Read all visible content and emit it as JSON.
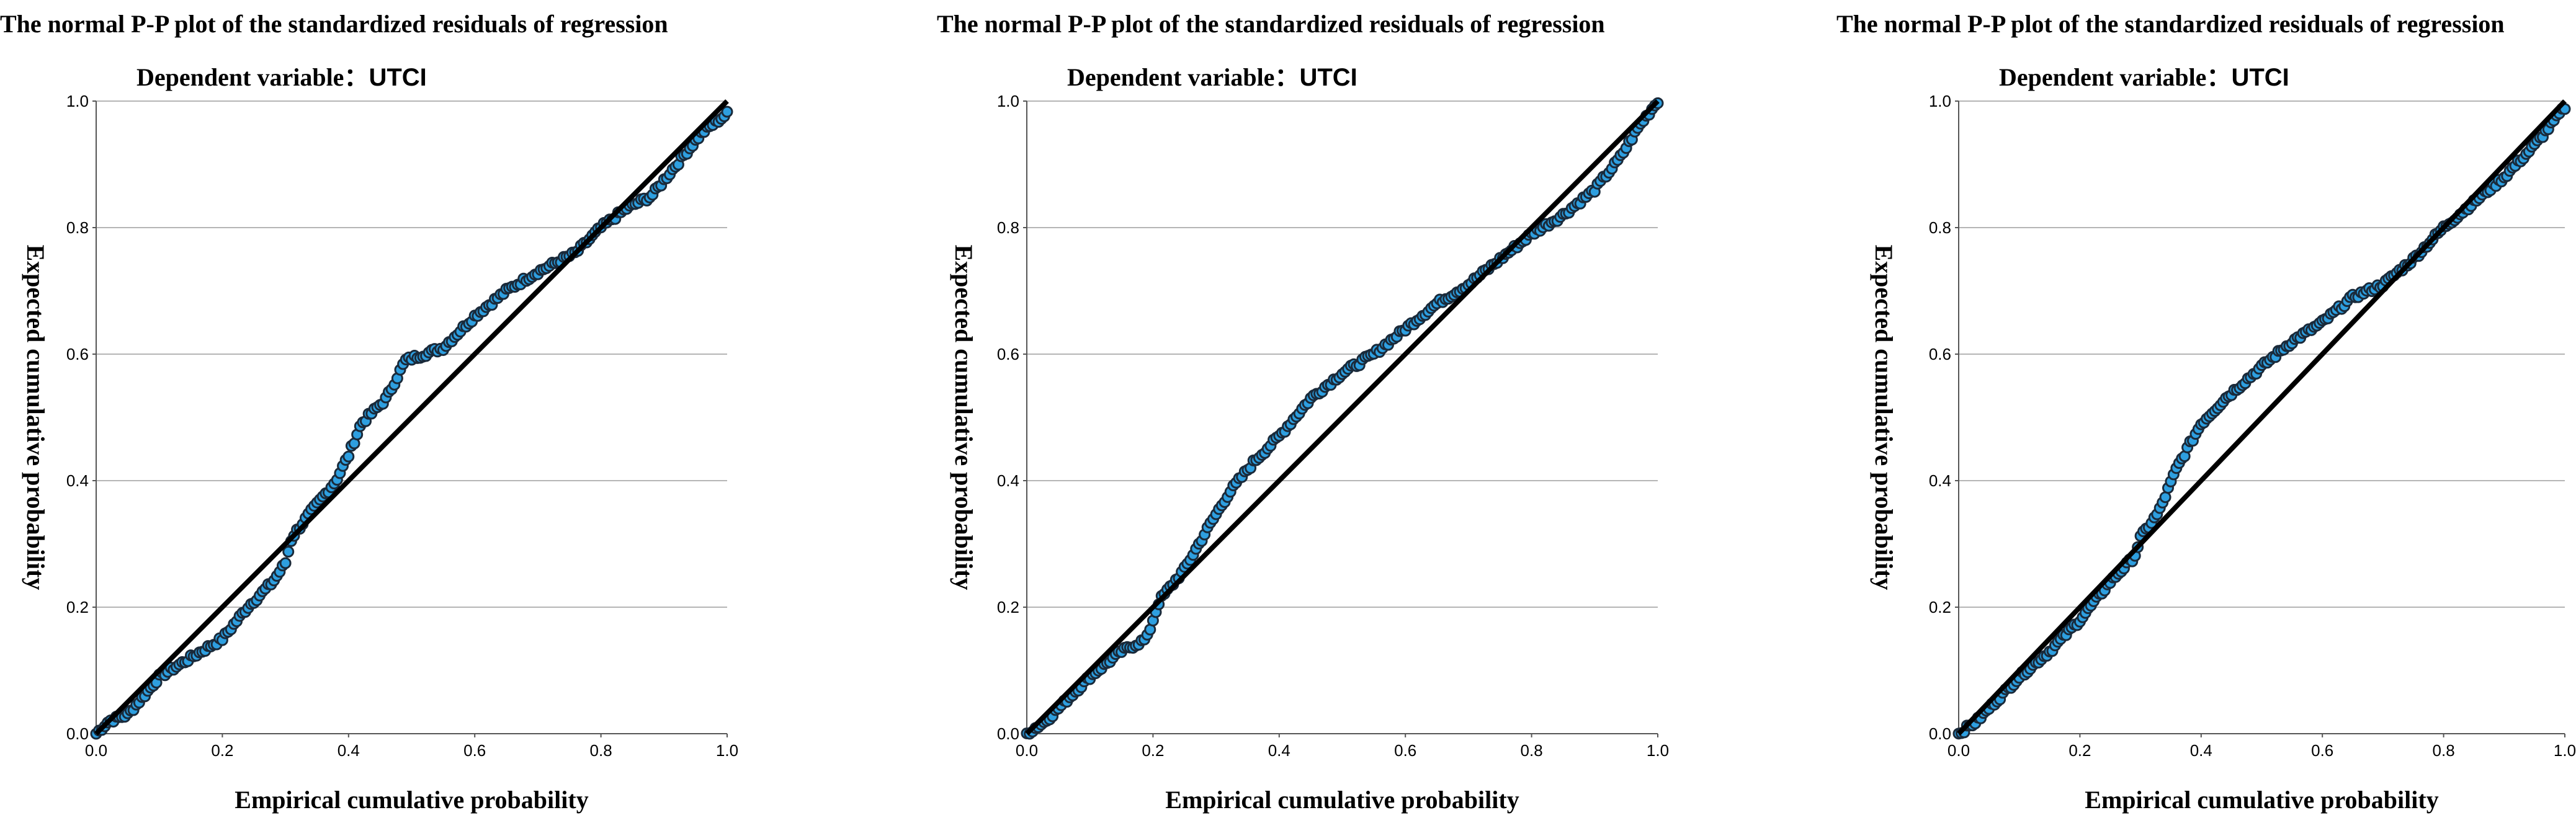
{
  "chart_data": [
    {
      "type": "scatter",
      "title": "The normal P-P plot of the standardized residuals of regression",
      "subtitle_label": "Dependent variable：",
      "subtitle_value": "UTCI",
      "xlabel": "Empirical cumulative probability",
      "ylabel": "Expected cumulative probability",
      "xlim": [
        0,
        1
      ],
      "ylim": [
        0,
        1
      ],
      "xticks": [
        "0.0",
        "0.2",
        "0.4",
        "0.6",
        "0.8",
        "1.0"
      ],
      "yticks": [
        "0.0",
        "0.2",
        "0.4",
        "0.6",
        "0.8",
        "1.0"
      ],
      "gridlines": "horizontal",
      "reference_line": [
        [
          0,
          0
        ],
        [
          1,
          1
        ]
      ],
      "point_color": "#2e9fe0",
      "point_edge_color": "#1a2a3a",
      "curve": [
        [
          0,
          0
        ],
        [
          0.02,
          0.02
        ],
        [
          0.05,
          0.03
        ],
        [
          0.08,
          0.065
        ],
        [
          0.1,
          0.09
        ],
        [
          0.15,
          0.12
        ],
        [
          0.2,
          0.15
        ],
        [
          0.24,
          0.2
        ],
        [
          0.28,
          0.24
        ],
        [
          0.3,
          0.27
        ],
        [
          0.31,
          0.31
        ],
        [
          0.34,
          0.35
        ],
        [
          0.38,
          0.4
        ],
        [
          0.4,
          0.44
        ],
        [
          0.42,
          0.49
        ],
        [
          0.46,
          0.53
        ],
        [
          0.49,
          0.59
        ],
        [
          0.55,
          0.61
        ],
        [
          0.6,
          0.66
        ],
        [
          0.65,
          0.7
        ],
        [
          0.7,
          0.73
        ],
        [
          0.76,
          0.76
        ],
        [
          0.8,
          0.8
        ],
        [
          0.84,
          0.83
        ],
        [
          0.88,
          0.85
        ],
        [
          0.92,
          0.9
        ],
        [
          0.96,
          0.95
        ],
        [
          1.0,
          0.98
        ]
      ],
      "n_points": 220
    },
    {
      "type": "scatter",
      "title": "The normal P-P plot of the standardized residuals of regression",
      "subtitle_label": "Dependent variable：",
      "subtitle_value": "UTCI",
      "xlabel": "Empirical cumulative probability",
      "ylabel": "Expected cumulative probability",
      "xlim": [
        0,
        1
      ],
      "ylim": [
        0,
        1
      ],
      "xticks": [
        "0.0",
        "0.2",
        "0.4",
        "0.6",
        "0.8",
        "1.0"
      ],
      "yticks": [
        "0.0",
        "0.2",
        "0.4",
        "0.6",
        "0.8",
        "1.0"
      ],
      "gridlines": "horizontal",
      "reference_line": [
        [
          0,
          0
        ],
        [
          1,
          1
        ]
      ],
      "point_color": "#2e9fe0",
      "point_edge_color": "#1a2a3a",
      "curve": [
        [
          0,
          0
        ],
        [
          0.03,
          0.02
        ],
        [
          0.06,
          0.05
        ],
        [
          0.1,
          0.09
        ],
        [
          0.15,
          0.13
        ],
        [
          0.19,
          0.15
        ],
        [
          0.2,
          0.18
        ],
        [
          0.21,
          0.21
        ],
        [
          0.25,
          0.26
        ],
        [
          0.29,
          0.33
        ],
        [
          0.32,
          0.38
        ],
        [
          0.36,
          0.43
        ],
        [
          0.4,
          0.47
        ],
        [
          0.45,
          0.53
        ],
        [
          0.5,
          0.57
        ],
        [
          0.55,
          0.6
        ],
        [
          0.6,
          0.64
        ],
        [
          0.65,
          0.68
        ],
        [
          0.7,
          0.71
        ],
        [
          0.75,
          0.75
        ],
        [
          0.8,
          0.79
        ],
        [
          0.85,
          0.82
        ],
        [
          0.9,
          0.86
        ],
        [
          0.94,
          0.91
        ],
        [
          0.97,
          0.96
        ],
        [
          1.0,
          1.0
        ]
      ],
      "n_points": 220
    },
    {
      "type": "scatter",
      "title": "The normal P-P plot of the standardized residuals of regression",
      "subtitle_label": "Dependent variable：",
      "subtitle_value": "UTCI",
      "xlabel": "Empirical cumulative probability",
      "ylabel": "Expected cumulative probability",
      "xlim": [
        0,
        1
      ],
      "ylim": [
        0,
        1
      ],
      "xticks": [
        "0.0",
        "0.2",
        "0.4",
        "0.6",
        "0.8",
        "1.0"
      ],
      "yticks": [
        "0.0",
        "0.2",
        "0.4",
        "0.6",
        "0.8",
        "1.0"
      ],
      "gridlines": "horizontal",
      "reference_line": [
        [
          0,
          0
        ],
        [
          1,
          1
        ]
      ],
      "point_color": "#2e9fe0",
      "point_edge_color": "#1a2a3a",
      "curve": [
        [
          0,
          0
        ],
        [
          0.03,
          0.02
        ],
        [
          0.06,
          0.05
        ],
        [
          0.1,
          0.09
        ],
        [
          0.15,
          0.13
        ],
        [
          0.2,
          0.18
        ],
        [
          0.25,
          0.24
        ],
        [
          0.29,
          0.28
        ],
        [
          0.3,
          0.31
        ],
        [
          0.33,
          0.35
        ],
        [
          0.36,
          0.42
        ],
        [
          0.4,
          0.49
        ],
        [
          0.44,
          0.53
        ],
        [
          0.5,
          0.58
        ],
        [
          0.55,
          0.62
        ],
        [
          0.6,
          0.65
        ],
        [
          0.65,
          0.69
        ],
        [
          0.7,
          0.71
        ],
        [
          0.75,
          0.75
        ],
        [
          0.8,
          0.8
        ],
        [
          0.85,
          0.84
        ],
        [
          0.9,
          0.88
        ],
        [
          0.95,
          0.93
        ],
        [
          1.0,
          0.99
        ]
      ],
      "n_points": 220
    }
  ]
}
